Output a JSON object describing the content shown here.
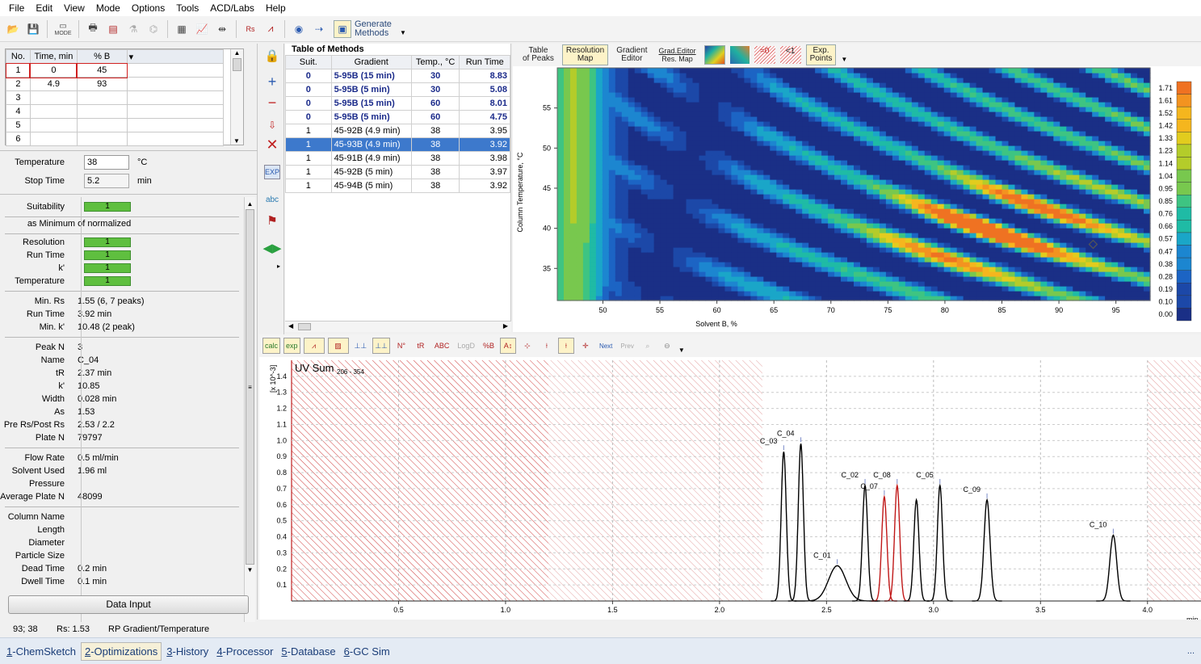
{
  "menu": [
    "File",
    "Edit",
    "View",
    "Mode",
    "Options",
    "Tools",
    "ACD/Labs",
    "Help"
  ],
  "toolbar": {
    "generate_label_1": "Generate",
    "generate_label_2": "Methods",
    "mode_label": "MODE"
  },
  "gradient_table": {
    "headers": [
      "No.",
      "Time, min",
      "% B"
    ],
    "rows": [
      {
        "no": "1",
        "time": "0",
        "b": "45"
      },
      {
        "no": "2",
        "time": "4.9",
        "b": "93"
      },
      {
        "no": "3",
        "time": "",
        "b": ""
      },
      {
        "no": "4",
        "time": "",
        "b": ""
      },
      {
        "no": "5",
        "time": "",
        "b": ""
      },
      {
        "no": "6",
        "time": "",
        "b": ""
      }
    ]
  },
  "params": {
    "temperature_label": "Temperature",
    "temperature_value": "38",
    "temperature_unit": "°C",
    "stop_label": "Stop Time",
    "stop_value": "5.2",
    "stop_unit": "min"
  },
  "suitability": {
    "suit_label": "Suitability",
    "suit_value": "1",
    "normalized": "as Minimum of normalized",
    "items": [
      {
        "k": "Resolution",
        "v": "1"
      },
      {
        "k": "Run Time",
        "v": "1"
      },
      {
        "k": "k'",
        "v": "1"
      },
      {
        "k": "Temperature",
        "v": "1"
      }
    ]
  },
  "results1": [
    {
      "k": "Min. Rs",
      "v": "1.55 (6, 7 peaks)"
    },
    {
      "k": "Run Time",
      "v": "3.92 min"
    },
    {
      "k": "Min. k'",
      "v": "10.48 (2 peak)"
    }
  ],
  "peak": [
    {
      "k": "Peak N",
      "v": "3"
    },
    {
      "k": "Name",
      "v": "C_04"
    },
    {
      "k": "tR",
      "v": "2.37 min"
    },
    {
      "k": "k'",
      "v": "10.85"
    },
    {
      "k": "Width",
      "v": "0.028 min"
    },
    {
      "k": "As",
      "v": "1.53"
    },
    {
      "k": "Pre Rs/Post Rs",
      "v": "2.53 / 2.2"
    },
    {
      "k": "Plate N",
      "v": "79797"
    }
  ],
  "flow": [
    {
      "k": "Flow Rate",
      "v": "0.5 ml/min"
    },
    {
      "k": "Solvent Used",
      "v": "1.96 ml"
    },
    {
      "k": "Pressure",
      "v": ""
    },
    {
      "k": "Average Plate N",
      "v": "48099"
    }
  ],
  "column": [
    {
      "k": "Column Name",
      "v": ""
    },
    {
      "k": "Length",
      "v": ""
    },
    {
      "k": "Diameter",
      "v": ""
    },
    {
      "k": "Particle Size",
      "v": ""
    },
    {
      "k": "Dead Time",
      "v": "0.2 min"
    },
    {
      "k": "Dwell Time",
      "v": "0.1 min"
    }
  ],
  "data_input": "Data Input",
  "methods": {
    "title": "Table of Methods",
    "headers": [
      "Suit.",
      "Gradient",
      "Temp., °C",
      "Run Time"
    ],
    "rows": [
      {
        "suit": "0",
        "grad": "5-95B (15 min)",
        "temp": "30",
        "run": "8.83",
        "bold": true,
        "sel": false
      },
      {
        "suit": "0",
        "grad": "5-95B (5 min)",
        "temp": "30",
        "run": "5.08",
        "bold": true,
        "sel": false
      },
      {
        "suit": "0",
        "grad": "5-95B (15 min)",
        "temp": "60",
        "run": "8.01",
        "bold": true,
        "sel": false
      },
      {
        "suit": "0",
        "grad": "5-95B (5 min)",
        "temp": "60",
        "run": "4.75",
        "bold": true,
        "sel": false
      },
      {
        "suit": "1",
        "grad": "45-92B (4.9 min)",
        "temp": "38",
        "run": "3.95",
        "bold": false,
        "sel": false
      },
      {
        "suit": "1",
        "grad": "45-93B (4.9 min)",
        "temp": "38",
        "run": "3.92",
        "bold": false,
        "sel": true
      },
      {
        "suit": "1",
        "grad": "45-91B (4.9 min)",
        "temp": "38",
        "run": "3.98",
        "bold": false,
        "sel": false
      },
      {
        "suit": "1",
        "grad": "45-92B (5 min)",
        "temp": "38",
        "run": "3.97",
        "bold": false,
        "sel": false
      },
      {
        "suit": "1",
        "grad": "45-94B (5 min)",
        "temp": "38",
        "run": "3.92",
        "bold": false,
        "sel": false
      }
    ]
  },
  "map_toolbar": {
    "t1a": "Table",
    "t1b": "of Peaks",
    "t2a": "Resolution",
    "t2b": "Map",
    "t3a": "Gradient",
    "t3b": "Editor",
    "t4a": "Grad.Editor",
    "t4b": "Res. Map",
    "t5": "=0",
    "t6": "<1",
    "t7a": "Exp.",
    "t7b": "Points"
  },
  "chart_data": [
    {
      "type": "heatmap",
      "xlabel": "Solvent B, %",
      "ylabel": "Column Temperature, °C",
      "xticks": [
        "50",
        "55",
        "60",
        "65",
        "70",
        "75",
        "80",
        "85",
        "90",
        "95"
      ],
      "yticks": [
        "35",
        "40",
        "45",
        "50",
        "55"
      ],
      "xlim": [
        46,
        98
      ],
      "ylim": [
        31,
        60
      ],
      "colorbar": [
        "1.71",
        "1.61",
        "1.52",
        "1.42",
        "1.33",
        "1.23",
        "1.14",
        "1.04",
        "0.95",
        "0.85",
        "0.76",
        "0.66",
        "0.57",
        "0.47",
        "0.38",
        "0.28",
        "0.19",
        "0.10",
        "0.00"
      ],
      "marker": {
        "x": 93,
        "y": 38
      }
    },
    {
      "type": "line",
      "title": "UV Sum",
      "title_sub": "206 - 354",
      "ylabel": "[x 10^-3]",
      "xlabel": "min",
      "xlim": [
        0,
        4.25
      ],
      "ylim": [
        0,
        1.5
      ],
      "xticks": [
        "0.5",
        "1.0",
        "1.5",
        "2.0",
        "2.5",
        "3.0",
        "3.5",
        "4.0"
      ],
      "yticks": [
        "1.4",
        "1.3",
        "1.2",
        "1.1",
        "1.0",
        "0.9",
        "0.8",
        "0.7",
        "0.6",
        "0.5",
        "0.4",
        "0.3",
        "0.2",
        "0.1"
      ],
      "excluded": [
        [
          0,
          1.2
        ],
        [
          1.2,
          2.2
        ],
        [
          4.0,
          4.25
        ]
      ],
      "peaks": [
        {
          "name": "C_03",
          "t": 2.3,
          "h": 0.93,
          "w": 0.012,
          "color": "black"
        },
        {
          "name": "C_04",
          "t": 2.38,
          "h": 0.98,
          "w": 0.012,
          "color": "black"
        },
        {
          "name": "C_01",
          "t": 2.55,
          "h": 0.22,
          "w": 0.04,
          "color": "black"
        },
        {
          "name": "C_02",
          "t": 2.68,
          "h": 0.72,
          "w": 0.012,
          "color": "black"
        },
        {
          "name": "C_07",
          "t": 2.77,
          "h": 0.65,
          "w": 0.012,
          "color": "#c01818"
        },
        {
          "name": "C_08",
          "t": 2.83,
          "h": 0.72,
          "w": 0.012,
          "color": "#c01818"
        },
        {
          "name": "",
          "t": 2.92,
          "h": 0.63,
          "w": 0.012,
          "color": "black"
        },
        {
          "name": "C_05",
          "t": 3.03,
          "h": 0.72,
          "w": 0.012,
          "color": "black"
        },
        {
          "name": "C_09",
          "t": 3.25,
          "h": 0.63,
          "w": 0.014,
          "color": "black"
        },
        {
          "name": "C_10",
          "t": 3.84,
          "h": 0.41,
          "w": 0.016,
          "color": "black"
        }
      ]
    }
  ],
  "status": {
    "coords": "93; 38",
    "rs": "Rs: 1.53",
    "mode": "RP Gradient/Temperature"
  },
  "bottom_tabs": [
    {
      "num": "1",
      "label": "-ChemSketch"
    },
    {
      "num": "2",
      "label": "-Optimizations"
    },
    {
      "num": "3",
      "label": "-History"
    },
    {
      "num": "4",
      "label": "-Processor"
    },
    {
      "num": "5",
      "label": "-Database"
    },
    {
      "num": "6",
      "label": "-GC Sim"
    }
  ],
  "colors": {
    "selected_row": "#3d79cc",
    "accent": "#1a3d78",
    "suit_green": "#5fbf3f"
  }
}
